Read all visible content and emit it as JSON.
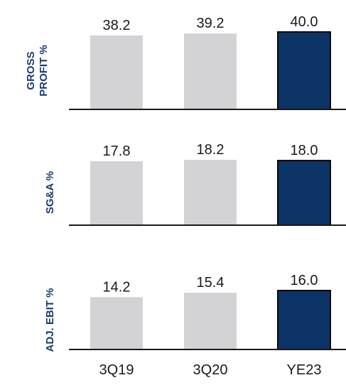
{
  "chart_data": [
    {
      "type": "bar",
      "title": "",
      "ylabel": "GROSS PROFIT %",
      "ylabel_lines": [
        "GROSS",
        "PROFIT %"
      ],
      "categories": [
        "3Q19",
        "3Q20",
        "YE23"
      ],
      "values": [
        38.2,
        39.2,
        40.0
      ],
      "value_labels": [
        "38.2",
        "39.2",
        "40.0"
      ],
      "bar_colors": [
        "#d3d3d5",
        "#d3d3d5",
        "#0c3366"
      ],
      "ylim": [
        0,
        40.0
      ],
      "grid": false
    },
    {
      "type": "bar",
      "title": "",
      "ylabel": "SG&A %",
      "ylabel_lines": [
        "SG&A %"
      ],
      "categories": [
        "3Q19",
        "3Q20",
        "YE23"
      ],
      "values": [
        17.8,
        18.2,
        18.0
      ],
      "value_labels": [
        "17.8",
        "18.2",
        "18.0"
      ],
      "bar_colors": [
        "#d3d3d5",
        "#d3d3d5",
        "#0c3366"
      ],
      "ylim": [
        0,
        18.2
      ],
      "grid": false
    },
    {
      "type": "bar",
      "title": "",
      "ylabel": "ADJ. EBIT %",
      "ylabel_lines": [
        "ADJ. EBIT %"
      ],
      "categories": [
        "3Q19",
        "3Q20",
        "YE23"
      ],
      "values": [
        14.2,
        15.4,
        16.0
      ],
      "value_labels": [
        "14.2",
        "15.4",
        "16.0"
      ],
      "bar_colors": [
        "#d3d3d5",
        "#d3d3d5",
        "#0c3366"
      ],
      "ylim": [
        0,
        16.0
      ],
      "grid": false
    }
  ],
  "x_axis_labels": [
    "3Q19",
    "3Q20",
    "YE23"
  ],
  "colors": {
    "label_text": "#1d3a6e",
    "value_text": "#1a1a1a",
    "axis_line": "#1a1a1a",
    "prior_bar": "#d3d3d5",
    "target_bar": "#0c3366",
    "target_bar_border": "#0a0a0a"
  }
}
